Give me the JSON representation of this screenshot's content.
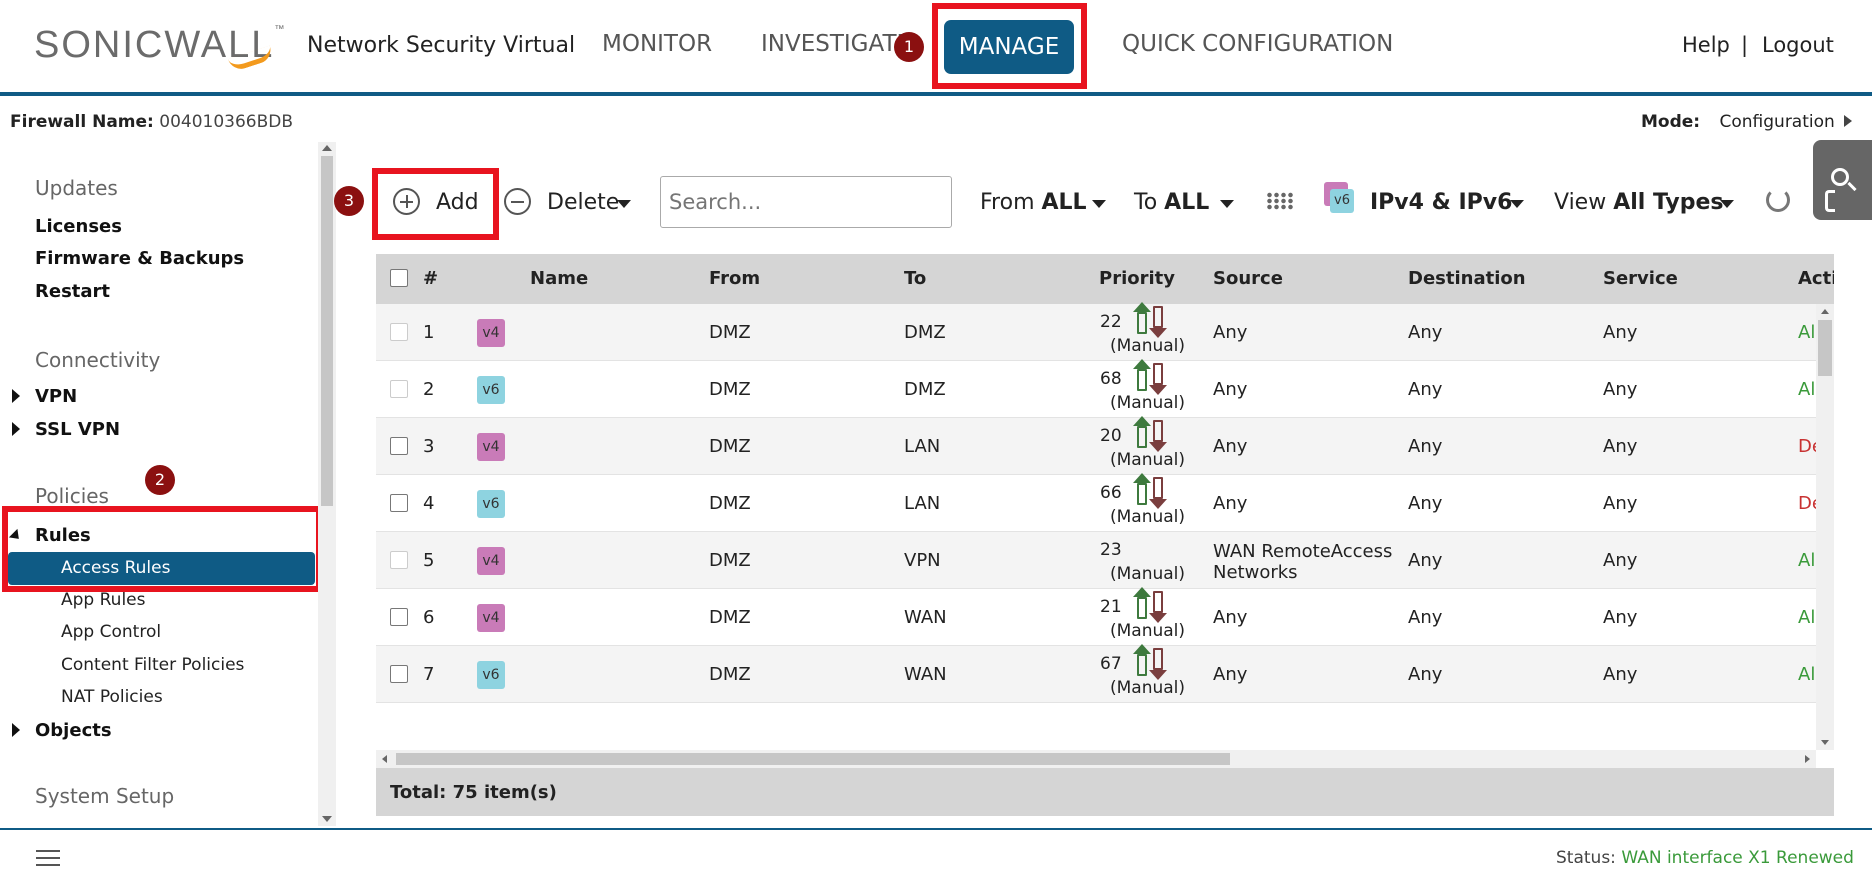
{
  "header": {
    "logo": "SONICWALL",
    "product": "Network Security Virtual",
    "nav": {
      "monitor": "MONITOR",
      "investigate": "INVESTIGATE",
      "manage": "MANAGE",
      "quick": "QUICK CONFIGURATION"
    },
    "help": "Help",
    "sep": "|",
    "logout": "Logout"
  },
  "annotations": {
    "one": "1",
    "two": "2",
    "three": "3",
    "highlight_color": "#e8141f"
  },
  "subheader": {
    "fw_label": "Firewall Name:",
    "fw_value": "004010366BDB",
    "mode_label": "Mode:",
    "mode_value": "Configuration"
  },
  "sidebar": {
    "updates": "Updates",
    "licenses": "Licenses",
    "firmware": "Firmware & Backups",
    "restart": "Restart",
    "connectivity": "Connectivity",
    "vpn": "VPN",
    "sslvpn": "SSL VPN",
    "policies": "Policies",
    "rules": "Rules",
    "access_rules": "Access Rules",
    "app_rules": "App Rules",
    "app_control": "App Control",
    "content_filter": "Content Filter Policies",
    "nat": "NAT Policies",
    "objects": "Objects",
    "system_setup": "System Setup"
  },
  "toolbar": {
    "add": "Add",
    "delete": "Delete",
    "search_placeholder": "Search...",
    "from_label": "From",
    "from_value": "ALL",
    "to_label": "To",
    "to_value": "ALL",
    "ip_icon": "v6",
    "ip_value": "IPv4 & IPv6",
    "view_label": "View",
    "view_value": "All Types"
  },
  "table": {
    "headers": {
      "num": "#",
      "name": "Name",
      "from": "From",
      "to": "To",
      "priority": "Priority",
      "source": "Source",
      "destination": "Destination",
      "service": "Service",
      "action": "Acti"
    },
    "rows": [
      {
        "num": "1",
        "ver": "v4",
        "name": "",
        "from": "DMZ",
        "to": "DMZ",
        "prio": "22",
        "manual": "(Manual)",
        "source": "Any",
        "source2": "",
        "dest": "Any",
        "service": "Any",
        "action": "Al"
      },
      {
        "num": "2",
        "ver": "v6",
        "name": "",
        "from": "DMZ",
        "to": "DMZ",
        "prio": "68",
        "manual": "(Manual)",
        "source": "Any",
        "source2": "",
        "dest": "Any",
        "service": "Any",
        "action": "Al"
      },
      {
        "num": "3",
        "ver": "v4",
        "name": "",
        "from": "DMZ",
        "to": "LAN",
        "prio": "20",
        "manual": "(Manual)",
        "source": "Any",
        "source2": "",
        "dest": "Any",
        "service": "Any",
        "action": "De"
      },
      {
        "num": "4",
        "ver": "v6",
        "name": "",
        "from": "DMZ",
        "to": "LAN",
        "prio": "66",
        "manual": "(Manual)",
        "source": "Any",
        "source2": "",
        "dest": "Any",
        "service": "Any",
        "action": "De"
      },
      {
        "num": "5",
        "ver": "v4",
        "name": "",
        "from": "DMZ",
        "to": "VPN",
        "prio": "23",
        "manual": "(Manual)",
        "source": "WAN RemoteAccess",
        "source2": "Networks",
        "dest": "Any",
        "service": "Any",
        "action": "Al"
      },
      {
        "num": "6",
        "ver": "v4",
        "name": "",
        "from": "DMZ",
        "to": "WAN",
        "prio": "21",
        "manual": "(Manual)",
        "source": "Any",
        "source2": "",
        "dest": "Any",
        "service": "Any",
        "action": "Al"
      },
      {
        "num": "7",
        "ver": "v6",
        "name": "",
        "from": "DMZ",
        "to": "WAN",
        "prio": "67",
        "manual": "(Manual)",
        "source": "Any",
        "source2": "",
        "dest": "Any",
        "service": "Any",
        "action": "Al"
      }
    ],
    "total": "Total: 75 item(s)"
  },
  "footer": {
    "status_label": "Status:",
    "status_value": "WAN interface X1 Renewed"
  }
}
